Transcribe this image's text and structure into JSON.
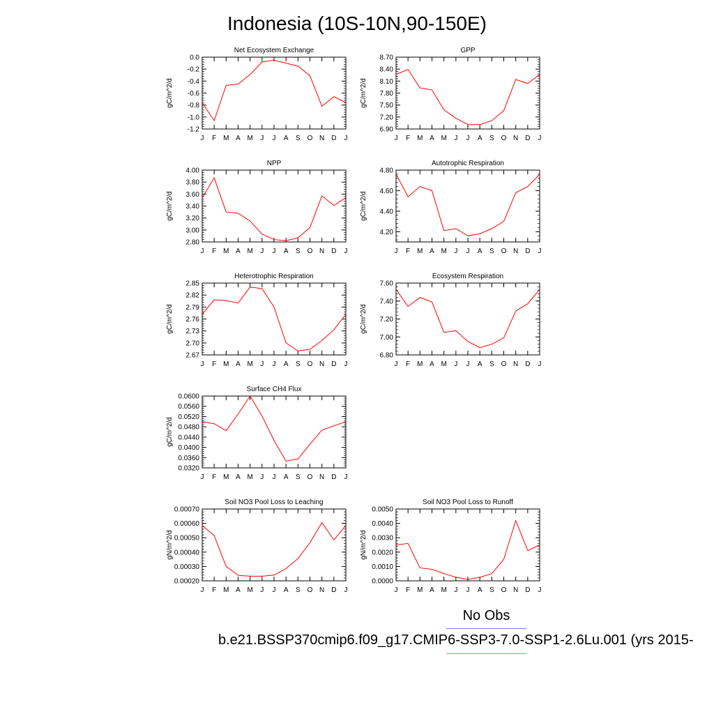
{
  "page": {
    "title": "Indonesia (10S-10N,90-150E)",
    "legend": {
      "obs_label": "No Obs",
      "case_label": "b.e21.BSSP370cmip6.f09_g17.CMIP6-SSP3-7.0-SSP1-2.6Lu.001 (yrs 2015-",
      "obs_color": "#7b7bf0",
      "case_color": "#f07b7b"
    }
  },
  "chart_data": [
    {
      "type": "line",
      "title": "Net Ecosystem Exchange",
      "ylabel": "gC/m^2/d",
      "categories": [
        "J",
        "F",
        "M",
        "A",
        "M",
        "J",
        "J",
        "A",
        "S",
        "O",
        "N",
        "D",
        "J"
      ],
      "yticks": [
        "0.0",
        "-0.2",
        "-0.4",
        "-0.6",
        "-0.8",
        "-1.0",
        "-1.2"
      ],
      "ylim": [
        -1.2,
        0.0
      ],
      "values": [
        -0.76,
        -1.06,
        -0.47,
        -0.45,
        -0.29,
        -0.08,
        -0.05,
        -0.1,
        -0.15,
        -0.31,
        -0.82,
        -0.66,
        -0.76
      ],
      "color": "#ff0000"
    },
    {
      "type": "line",
      "title": "GPP",
      "ylabel": "gC/m^2/d",
      "categories": [
        "J",
        "F",
        "M",
        "A",
        "M",
        "J",
        "J",
        "A",
        "S",
        "O",
        "N",
        "D",
        "J"
      ],
      "yticks": [
        "8.70",
        "8.40",
        "8.10",
        "7.80",
        "7.50",
        "7.20",
        "6.90"
      ],
      "ylim": [
        6.9,
        8.7
      ],
      "values": [
        8.27,
        8.39,
        7.93,
        7.88,
        7.38,
        7.17,
        7.01,
        7.01,
        7.11,
        7.36,
        8.14,
        8.04,
        8.27
      ],
      "color": "#ff0000"
    },
    {
      "type": "line",
      "title": "NPP",
      "ylabel": "gC/m^2/d",
      "categories": [
        "J",
        "F",
        "M",
        "A",
        "M",
        "J",
        "J",
        "A",
        "S",
        "O",
        "N",
        "D",
        "J"
      ],
      "yticks": [
        "4.00",
        "3.80",
        "3.60",
        "3.40",
        "3.20",
        "3.00",
        "2.80"
      ],
      "ylim": [
        2.8,
        4.0
      ],
      "values": [
        3.54,
        3.87,
        3.3,
        3.28,
        3.15,
        2.93,
        2.84,
        2.82,
        2.87,
        3.04,
        3.57,
        3.41,
        3.54
      ],
      "color": "#ff0000"
    },
    {
      "type": "line",
      "title": "Autotrophic Respiration",
      "ylabel": "gC/m^2/d",
      "categories": [
        "J",
        "F",
        "M",
        "A",
        "M",
        "J",
        "J",
        "A",
        "S",
        "O",
        "N",
        "D",
        "J"
      ],
      "yticks": [
        "4.80",
        "4.60",
        "4.40",
        "4.20"
      ],
      "ylim": [
        4.1,
        4.8
      ],
      "values": [
        4.76,
        4.54,
        4.64,
        4.6,
        4.21,
        4.23,
        4.16,
        4.18,
        4.23,
        4.3,
        4.58,
        4.64,
        4.76
      ],
      "color": "#ff0000"
    },
    {
      "type": "line",
      "title": "Heterotrophic Respiration",
      "ylabel": "gC/m^2/d",
      "categories": [
        "J",
        "F",
        "M",
        "A",
        "M",
        "J",
        "J",
        "A",
        "S",
        "O",
        "N",
        "D",
        "J"
      ],
      "yticks": [
        "2.85",
        "2.82",
        "2.79",
        "2.76",
        "2.73",
        "2.70",
        "2.67"
      ],
      "ylim": [
        2.67,
        2.85
      ],
      "values": [
        2.772,
        2.808,
        2.806,
        2.8,
        2.84,
        2.836,
        2.79,
        2.7,
        2.68,
        2.684,
        2.706,
        2.733,
        2.772
      ],
      "color": "#ff0000"
    },
    {
      "type": "line",
      "title": "Ecosystem Respiration",
      "ylabel": "gC/m^2/d",
      "categories": [
        "J",
        "F",
        "M",
        "A",
        "M",
        "J",
        "J",
        "A",
        "S",
        "O",
        "N",
        "D",
        "J"
      ],
      "yticks": [
        "7.60",
        "7.40",
        "7.20",
        "7.00",
        "6.80"
      ],
      "ylim": [
        6.8,
        7.6
      ],
      "values": [
        7.53,
        7.34,
        7.44,
        7.39,
        7.05,
        7.07,
        6.95,
        6.88,
        6.92,
        6.99,
        7.29,
        7.37,
        7.53
      ],
      "color": "#ff0000"
    },
    {
      "type": "line",
      "title": "Surface CH4 Flux",
      "ylabel": "gC/m^2/d",
      "categories": [
        "J",
        "F",
        "M",
        "A",
        "M",
        "J",
        "J",
        "A",
        "S",
        "O",
        "N",
        "D",
        "J"
      ],
      "yticks": [
        "0.0600",
        "0.0560",
        "0.0520",
        "0.0480",
        "0.0440",
        "0.0400",
        "0.0360",
        "0.0320"
      ],
      "ylim": [
        0.032,
        0.06
      ],
      "values": [
        0.05,
        0.0492,
        0.0465,
        0.053,
        0.06,
        0.0522,
        0.0427,
        0.0346,
        0.0355,
        0.0412,
        0.0467,
        0.0484,
        0.05
      ],
      "color": "#ff0000"
    },
    {
      "type": "line",
      "title": "Soil NO3 Pool Loss to Leaching",
      "ylabel": "gN/m^2/d",
      "categories": [
        "J",
        "F",
        "M",
        "A",
        "M",
        "J",
        "J",
        "A",
        "S",
        "O",
        "N",
        "D",
        "J"
      ],
      "yticks": [
        "0.00070",
        "0.00060",
        "0.00050",
        "0.00040",
        "0.00030",
        "0.00020"
      ],
      "ylim": [
        0.0002,
        0.0007
      ],
      "values": [
        0.000585,
        0.000515,
        0.0003,
        0.000238,
        0.000232,
        0.000232,
        0.00024,
        0.000285,
        0.000355,
        0.000465,
        0.000605,
        0.000485,
        0.000585
      ],
      "color": "#ff0000"
    },
    {
      "type": "line",
      "title": "Soil NO3 Pool Loss to Runoff",
      "ylabel": "gN/m^2/d",
      "categories": [
        "J",
        "F",
        "M",
        "A",
        "M",
        "J",
        "J",
        "A",
        "S",
        "O",
        "N",
        "D",
        "J"
      ],
      "yticks": [
        "0.0050",
        "0.0040",
        "0.0030",
        "0.0020",
        "0.0010",
        "0.0000"
      ],
      "ylim": [
        0.0,
        0.005
      ],
      "values": [
        0.0025,
        0.0026,
        0.0009,
        0.0008,
        0.0005,
        0.00025,
        0.0001,
        0.00025,
        0.0005,
        0.0015,
        0.0042,
        0.0021,
        0.0025
      ],
      "color": "#ff0000"
    }
  ]
}
